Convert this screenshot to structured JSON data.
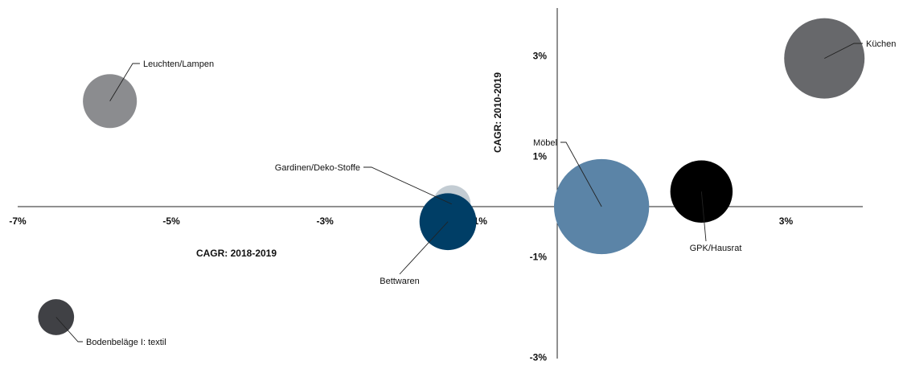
{
  "chart_data": {
    "type": "bubble",
    "title": "",
    "xlabel": "CAGR: 2018-2019",
    "ylabel": "CAGR: 2010-2019",
    "xlim": [
      -7,
      4
    ],
    "ylim": [
      -3,
      4
    ],
    "x_ticks": [
      {
        "value": -7,
        "label": "-7%"
      },
      {
        "value": -5,
        "label": "-5%"
      },
      {
        "value": -3,
        "label": "-3%"
      },
      {
        "value": -1,
        "label": "-1%"
      },
      {
        "value": 1,
        "label": "1%"
      },
      {
        "value": 3,
        "label": "3%"
      }
    ],
    "y_ticks": [
      {
        "value": 3,
        "label": "3%"
      },
      {
        "value": 1,
        "label": "1%"
      },
      {
        "value": -1,
        "label": "-1%"
      },
      {
        "value": -3,
        "label": "-3%"
      }
    ],
    "series": [
      {
        "name": "Küchen",
        "x": 3.5,
        "y": 2.95,
        "size": 100,
        "color": "#67686b"
      },
      {
        "name": "Leuchten/Lampen",
        "x": -5.8,
        "y": 2.1,
        "size": 45,
        "color": "#8b8c8f"
      },
      {
        "name": "Gardinen/Deko-Stoffe",
        "x": -1.35,
        "y": 0.05,
        "size": 22,
        "color": "#c3ccd3"
      },
      {
        "name": "Bettwaren",
        "x": -1.4,
        "y": -0.3,
        "size": 50,
        "color": "#003e66"
      },
      {
        "name": "Möbel",
        "x": 0.6,
        "y": 0.0,
        "size": 140,
        "color": "#5b84a7"
      },
      {
        "name": "GPK/Hausrat",
        "x": 1.9,
        "y": 0.3,
        "size": 60,
        "color": "#000000"
      },
      {
        "name": "Bodenbeläge  I: textil",
        "x": -6.5,
        "y": -2.2,
        "size": 20,
        "color": "#404145"
      }
    ]
  }
}
